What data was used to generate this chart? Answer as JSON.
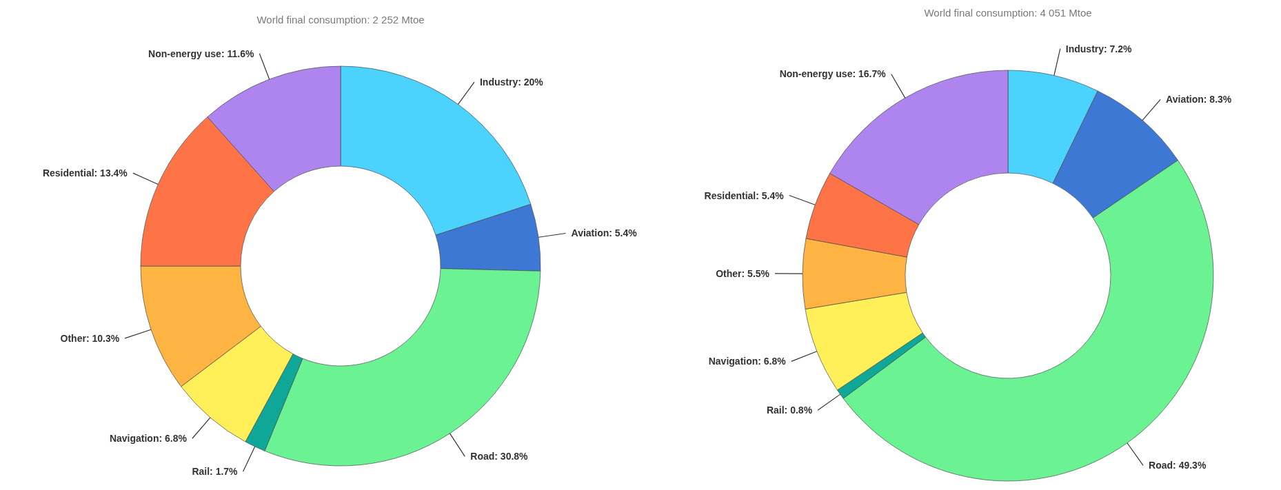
{
  "chart_data": [
    {
      "type": "donut",
      "title": "World final consumption: 2 252 Mtoe",
      "categories": [
        "Industry",
        "Aviation",
        "Road",
        "Rail",
        "Navigation",
        "Other",
        "Residential",
        "Non-energy use"
      ],
      "values": [
        20,
        5.4,
        30.8,
        1.7,
        6.8,
        10.3,
        13.4,
        11.6
      ],
      "value_labels": [
        "20%",
        "5.4%",
        "30.8%",
        "1.7%",
        "6.8%",
        "10.3%",
        "13.4%",
        "11.6%"
      ],
      "colors": [
        "#4bd2fd",
        "#3d79d4",
        "#6bf293",
        "#0fa898",
        "#fff05a",
        "#fdb442",
        "#ff7447",
        "#ae84ee"
      ]
    },
    {
      "type": "donut",
      "title": "World final consumption: 4 051 Mtoe",
      "categories": [
        "Industry",
        "Aviation",
        "Road",
        "Rail",
        "Navigation",
        "Other",
        "Residential",
        "Non-energy use"
      ],
      "values": [
        7.2,
        8.3,
        49.3,
        0.8,
        6.8,
        5.5,
        5.4,
        16.7
      ],
      "value_labels": [
        "7.2%",
        "8.3%",
        "49.3%",
        "0.8%",
        "6.8%",
        "5.5%",
        "5.4%",
        "16.7%"
      ],
      "colors": [
        "#4bd2fd",
        "#3d79d4",
        "#6bf293",
        "#0fa898",
        "#fff05a",
        "#fdb442",
        "#ff7447",
        "#ae84ee"
      ]
    }
  ]
}
